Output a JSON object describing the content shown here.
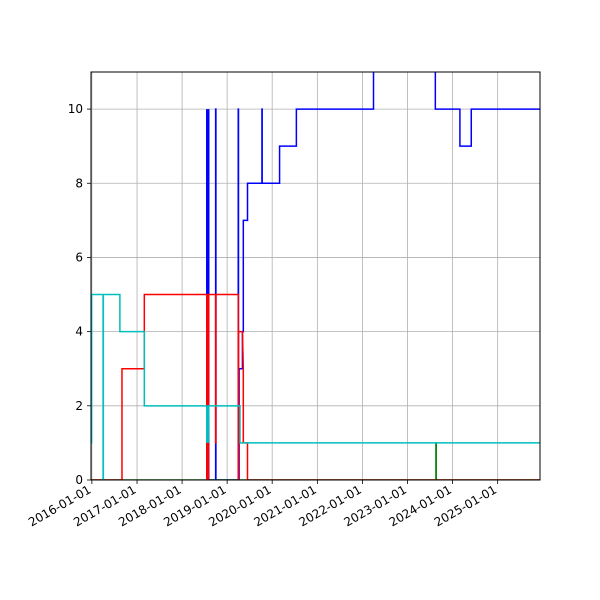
{
  "chart_data": {
    "type": "line",
    "title": "",
    "xlabel": "",
    "ylabel": "",
    "grid": true,
    "xlim": [
      "2015-12-25",
      "2025-12-10"
    ],
    "ylim": [
      0,
      11
    ],
    "x_ticks": [
      "2016-01-01",
      "2017-01-01",
      "2018-01-01",
      "2019-01-01",
      "2020-01-01",
      "2021-01-01",
      "2022-01-01",
      "2023-01-01",
      "2024-01-01",
      "2025-01-01"
    ],
    "y_ticks": [
      0,
      2,
      4,
      6,
      8,
      10
    ],
    "series": [
      {
        "color": "#0000ff",
        "step": true,
        "points": [
          [
            "2018-07-20",
            10
          ],
          [
            "2018-07-20",
            0
          ],
          [
            "2018-07-22",
            10
          ],
          [
            "2018-07-22",
            0
          ],
          [
            "2018-07-25",
            10
          ],
          [
            "2018-07-25",
            0
          ],
          [
            "2018-07-27",
            10
          ],
          [
            "2018-07-27",
            0
          ],
          [
            "2018-07-30",
            10
          ],
          [
            "2018-07-30",
            0
          ],
          [
            "2018-08-01",
            10
          ],
          [
            "2018-08-01",
            0
          ],
          [
            "2018-08-03",
            10
          ],
          [
            "2018-08-03",
            0
          ],
          [
            "2018-08-05",
            10
          ],
          [
            "2018-08-05",
            0
          ],
          [
            "2018-09-30",
            0
          ],
          [
            "2018-09-30",
            10
          ],
          [
            "2018-10-02",
            10
          ],
          [
            "2018-10-02",
            0
          ],
          [
            "2019-04-01",
            0
          ],
          [
            "2019-04-01",
            10
          ],
          [
            "2019-04-03",
            10
          ],
          [
            "2019-04-03",
            0
          ],
          [
            "2019-04-08",
            0
          ],
          [
            "2019-04-08",
            3
          ],
          [
            "2019-05-05",
            3
          ],
          [
            "2019-05-05",
            4
          ],
          [
            "2019-05-12",
            4
          ],
          [
            "2019-05-12",
            7
          ],
          [
            "2019-06-15",
            7
          ],
          [
            "2019-06-15",
            8
          ],
          [
            "2019-10-10",
            8
          ],
          [
            "2019-10-10",
            10
          ],
          [
            "2019-10-12",
            10
          ],
          [
            "2019-10-12",
            8
          ],
          [
            "2020-03-01",
            8
          ],
          [
            "2020-03-01",
            9
          ],
          [
            "2020-07-15",
            9
          ],
          [
            "2020-07-15",
            10
          ],
          [
            "2022-04-01",
            10
          ],
          [
            "2022-04-01",
            11.2
          ],
          [
            "2023-08-15",
            11.2
          ],
          [
            "2023-08-15",
            10
          ],
          [
            "2024-03-01",
            10
          ],
          [
            "2024-03-01",
            9
          ],
          [
            "2024-06-01",
            9
          ],
          [
            "2024-06-01",
            10
          ],
          [
            "2025-12-10",
            10
          ]
        ]
      },
      {
        "color": "#008000",
        "step": true,
        "points": [
          [
            "2015-12-25",
            0
          ],
          [
            "2023-08-20",
            0
          ],
          [
            "2023-08-20",
            1
          ],
          [
            "2023-08-22",
            1
          ],
          [
            "2023-08-22",
            0
          ],
          [
            "2025-12-10",
            0
          ]
        ]
      },
      {
        "color": "#ff0000",
        "step": true,
        "points": [
          [
            "2015-12-25",
            0
          ],
          [
            "2016-09-01",
            0
          ],
          [
            "2016-09-01",
            3
          ],
          [
            "2017-03-01",
            3
          ],
          [
            "2017-03-01",
            5
          ],
          [
            "2018-07-20",
            5
          ],
          [
            "2018-07-20",
            0
          ],
          [
            "2018-07-22",
            5
          ],
          [
            "2018-07-22",
            0
          ],
          [
            "2018-07-25",
            5
          ],
          [
            "2018-07-25",
            0
          ],
          [
            "2018-07-27",
            5
          ],
          [
            "2018-07-27",
            0
          ],
          [
            "2018-07-30",
            5
          ],
          [
            "2018-07-30",
            0
          ],
          [
            "2018-08-01",
            5
          ],
          [
            "2018-08-01",
            0
          ],
          [
            "2018-08-03",
            5
          ],
          [
            "2018-08-03",
            0
          ],
          [
            "2018-08-05",
            5
          ],
          [
            "2018-09-30",
            5
          ],
          [
            "2018-09-30",
            1
          ],
          [
            "2018-10-02",
            1
          ],
          [
            "2018-10-02",
            5
          ],
          [
            "2019-04-01",
            5
          ],
          [
            "2019-04-01",
            0
          ],
          [
            "2019-04-03",
            0
          ],
          [
            "2019-04-03",
            4
          ],
          [
            "2019-05-05",
            4
          ],
          [
            "2019-05-12",
            3
          ],
          [
            "2019-05-12",
            1
          ],
          [
            "2019-06-15",
            1
          ],
          [
            "2019-06-15",
            0
          ],
          [
            "2025-12-10",
            0
          ]
        ]
      },
      {
        "color": "#00bfbf",
        "step": true,
        "points": [
          [
            "2015-12-25",
            1
          ],
          [
            "2015-12-30",
            1
          ],
          [
            "2015-12-30",
            5
          ],
          [
            "2016-04-01",
            5
          ],
          [
            "2016-04-01",
            0
          ],
          [
            "2016-04-03",
            0
          ],
          [
            "2016-04-03",
            5
          ],
          [
            "2016-08-15",
            5
          ],
          [
            "2016-08-15",
            4
          ],
          [
            "2017-03-01",
            4
          ],
          [
            "2017-03-01",
            2
          ],
          [
            "2018-07-20",
            2
          ],
          [
            "2018-07-20",
            1
          ],
          [
            "2018-07-22",
            2
          ],
          [
            "2018-07-22",
            1
          ],
          [
            "2018-07-25",
            2
          ],
          [
            "2018-07-25",
            1
          ],
          [
            "2018-07-27",
            2
          ],
          [
            "2018-07-27",
            1
          ],
          [
            "2018-07-30",
            2
          ],
          [
            "2018-07-30",
            1
          ],
          [
            "2018-08-01",
            2
          ],
          [
            "2018-08-01",
            1
          ],
          [
            "2018-08-03",
            2
          ],
          [
            "2018-08-03",
            1
          ],
          [
            "2018-08-05",
            2
          ],
          [
            "2019-04-15",
            2
          ],
          [
            "2019-04-15",
            1
          ],
          [
            "2025-12-10",
            1
          ]
        ]
      }
    ]
  }
}
